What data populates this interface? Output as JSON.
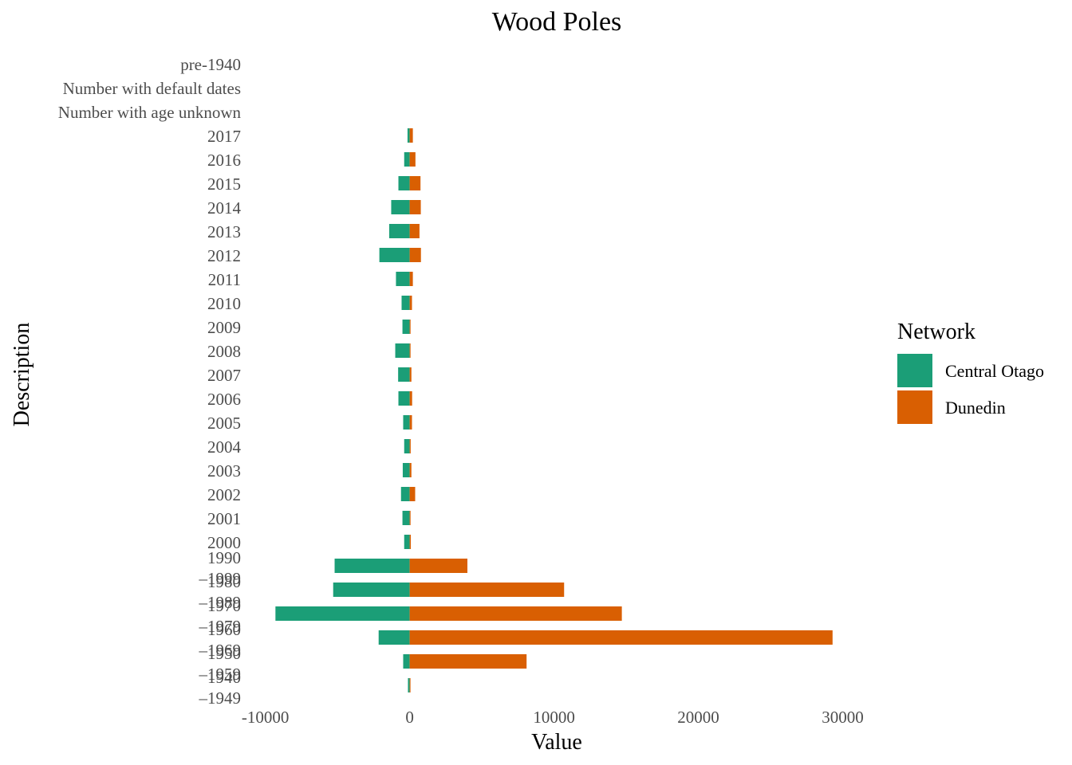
{
  "chart_data": {
    "type": "bar",
    "orientation": "horizontal",
    "stacking": "diverging",
    "title": "Wood Poles",
    "xlabel": "Value",
    "ylabel": "Description",
    "xlim": [
      -10700,
      31300
    ],
    "xticks": [
      -10000,
      0,
      10000,
      20000,
      30000
    ],
    "xtick_labels": [
      "-10000",
      "0",
      "10000",
      "20000",
      "30000"
    ],
    "grid": false,
    "legend": {
      "title": "Network",
      "position": "right"
    },
    "categories": [
      "pre-1940",
      "Number with default dates",
      "Number with age unknown",
      "2017",
      "2016",
      "2015",
      "2014",
      "2013",
      "2012",
      "2011",
      "2010",
      "2009",
      "2008",
      "2007",
      "2006",
      "2005",
      "2004",
      "2003",
      "2002",
      "2001",
      "2000",
      "1990\n–1999",
      "1980\n–1989",
      "1970\n–1979",
      "1960\n–1969",
      "1950\n–1959",
      "1940\n–1949"
    ],
    "series": [
      {
        "name": "Central Otago",
        "color": "#1b9e77",
        "values": [
          0,
          0,
          0,
          -150,
          -380,
          -780,
          -1280,
          -1420,
          -2100,
          -950,
          -560,
          -500,
          -1000,
          -800,
          -780,
          -450,
          -380,
          -480,
          -600,
          -500,
          -380,
          -5200,
          -5300,
          -9300,
          -2150,
          -450,
          -120
        ]
      },
      {
        "name": "Dunedin",
        "color": "#d95f02",
        "values": [
          0,
          0,
          0,
          220,
          400,
          750,
          770,
          680,
          780,
          220,
          160,
          60,
          60,
          120,
          170,
          160,
          70,
          120,
          380,
          60,
          80,
          4000,
          10700,
          14700,
          29300,
          8100,
          40
        ]
      }
    ]
  }
}
